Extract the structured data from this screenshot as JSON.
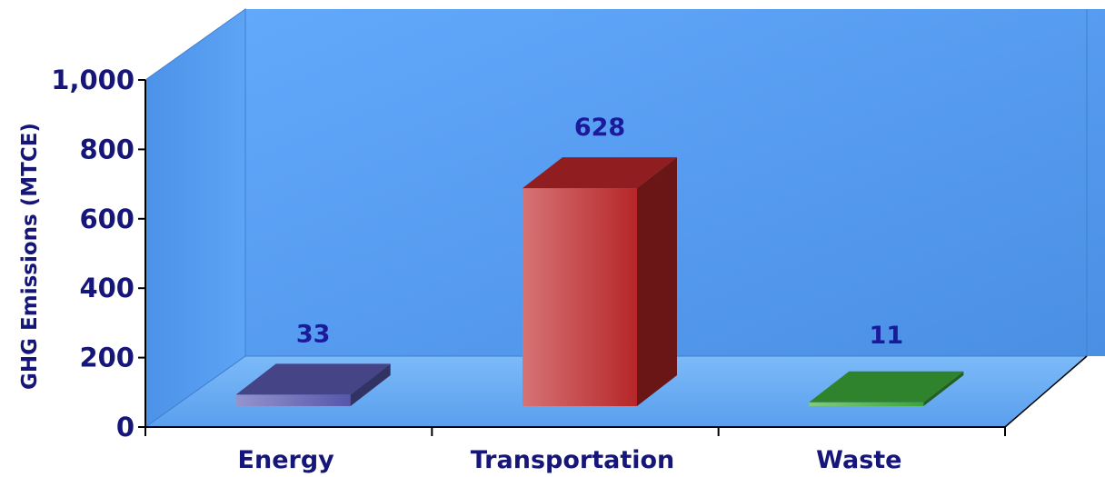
{
  "chart_data": {
    "type": "bar",
    "style": "3d",
    "title": "",
    "xlabel": "",
    "ylabel": "GHG Emissions (MTCE)",
    "categories": [
      "Energy",
      "Transportation",
      "Waste"
    ],
    "values": [
      33,
      628,
      11
    ],
    "value_labels": [
      "33",
      "628",
      "11"
    ],
    "ylim": [
      0,
      1000
    ],
    "yticks": [
      0,
      200,
      400,
      600,
      800,
      1000
    ],
    "ytick_labels": [
      "0",
      "200",
      "400",
      "600",
      "800",
      "1,000"
    ],
    "bar_colors": [
      "#5a5ab4",
      "#c0282a",
      "#3fae3a"
    ],
    "grid": false,
    "legend": "none",
    "background_color": "#5aa0f2"
  }
}
